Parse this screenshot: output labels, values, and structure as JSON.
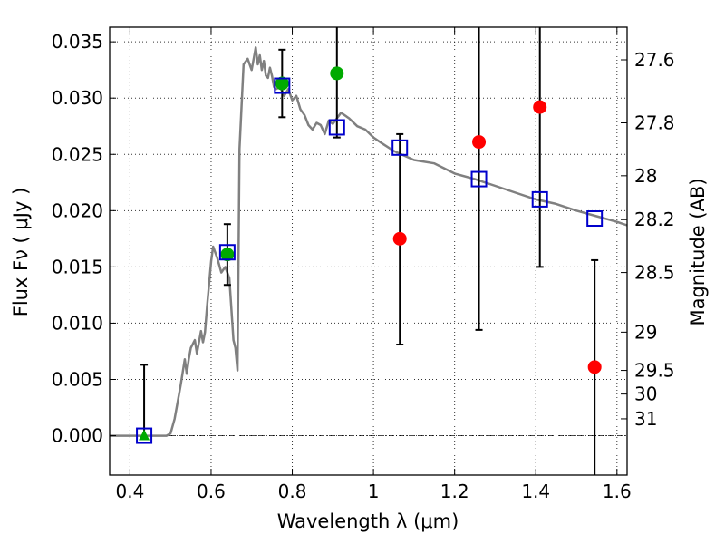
{
  "chart_data": {
    "type": "scatter",
    "xlabel": "Wavelength  λ (μm)",
    "ylabel": "Flux  Fν  ( μJy )",
    "y2label": "Magnitude (AB)",
    "xlim": [
      0.35,
      1.625
    ],
    "ylim": [
      -0.0035,
      0.0363
    ],
    "grid": true,
    "x_ticks": [
      0.4,
      0.6,
      0.8,
      1.0,
      1.2,
      1.4,
      1.6
    ],
    "x_tick_labels": [
      "0.4",
      "0.6",
      "0.8",
      "1",
      "1.2",
      "1.4",
      "1.6"
    ],
    "y_ticks": [
      0.0,
      0.005,
      0.01,
      0.015,
      0.02,
      0.025,
      0.03,
      0.035
    ],
    "y_tick_labels": [
      "0.000",
      "0.005",
      "0.010",
      "0.015",
      "0.020",
      "0.025",
      "0.030",
      "0.035"
    ],
    "y2_ticks": [
      {
        "label": "27.6",
        "flux": 0.0334
      },
      {
        "label": "27.8",
        "flux": 0.0278
      },
      {
        "label": "28",
        "flux": 0.0231
      },
      {
        "label": "28.2",
        "flux": 0.0192
      },
      {
        "label": "28.5",
        "flux": 0.0145
      },
      {
        "label": "29",
        "flux": 0.0092
      },
      {
        "label": "29.5",
        "flux": 0.0058
      },
      {
        "label": "30",
        "flux": 0.0037
      },
      {
        "label": "31",
        "flux": 0.0015
      }
    ],
    "series": [
      {
        "kind": "sed_model_curve",
        "color": "#808080",
        "x": [
          0.35,
          0.48,
          0.49,
          0.5,
          0.51,
          0.525,
          0.535,
          0.54,
          0.545,
          0.55,
          0.56,
          0.565,
          0.575,
          0.58,
          0.585,
          0.59,
          0.6,
          0.605,
          0.615,
          0.625,
          0.635,
          0.645,
          0.655,
          0.66,
          0.665,
          0.67,
          0.68,
          0.69,
          0.7,
          0.71,
          0.715,
          0.72,
          0.725,
          0.73,
          0.735,
          0.74,
          0.745,
          0.75,
          0.755,
          0.76,
          0.77,
          0.78,
          0.79,
          0.8,
          0.81,
          0.82,
          0.83,
          0.84,
          0.85,
          0.86,
          0.87,
          0.88,
          0.89,
          0.9,
          0.92,
          0.94,
          0.96,
          0.98,
          1.0,
          1.02,
          1.05,
          1.1,
          1.15,
          1.2,
          1.25,
          1.3,
          1.35,
          1.4,
          1.45,
          1.5,
          1.55,
          1.6,
          1.625
        ],
        "y": [
          0.0,
          0.0,
          0.0,
          0.0002,
          0.0015,
          0.0045,
          0.0068,
          0.0055,
          0.0068,
          0.0078,
          0.0085,
          0.0073,
          0.0093,
          0.0083,
          0.0092,
          0.0115,
          0.0155,
          0.0168,
          0.0158,
          0.0145,
          0.015,
          0.014,
          0.0085,
          0.0078,
          0.0058,
          0.0255,
          0.033,
          0.0335,
          0.0325,
          0.0345,
          0.033,
          0.0338,
          0.0325,
          0.0333,
          0.032,
          0.0318,
          0.0327,
          0.032,
          0.031,
          0.0308,
          0.031,
          0.0302,
          0.0308,
          0.0298,
          0.0302,
          0.029,
          0.0285,
          0.0276,
          0.0272,
          0.0278,
          0.0276,
          0.0268,
          0.028,
          0.0277,
          0.0287,
          0.0282,
          0.0275,
          0.0272,
          0.0265,
          0.026,
          0.0253,
          0.0245,
          0.0242,
          0.0233,
          0.0228,
          0.0222,
          0.0216,
          0.021,
          0.0206,
          0.02,
          0.0195,
          0.019,
          0.0187
        ]
      },
      {
        "kind": "model_photometry",
        "marker": "open-square",
        "color": "#0000cc",
        "x": [
          0.435,
          0.64,
          0.775,
          0.91,
          1.065,
          1.26,
          1.41,
          1.545
        ],
        "y": [
          0.0,
          0.0163,
          0.0311,
          0.0274,
          0.0256,
          0.0228,
          0.021,
          0.0193
        ]
      },
      {
        "kind": "detections",
        "marker": "filled-circle",
        "color": "#00aa00",
        "x": [
          0.64,
          0.775,
          0.91
        ],
        "y": [
          0.0161,
          0.0313,
          0.0322
        ]
      },
      {
        "kind": "detection_triangle",
        "marker": "triangle",
        "color": "#00aa00",
        "x": [
          0.435
        ],
        "y": [
          0.0
        ]
      },
      {
        "kind": "non_detections",
        "marker": "filled-circle",
        "color": "#ff0000",
        "x": [
          1.065,
          1.26,
          1.41,
          1.545
        ],
        "y": [
          0.0175,
          0.0261,
          0.0292,
          0.0061
        ]
      }
    ],
    "error_bars": [
      {
        "x": 0.435,
        "low": 0.0,
        "high": 0.0063,
        "cap_low": false,
        "cap_high": true
      },
      {
        "x": 0.64,
        "low": 0.0134,
        "high": 0.0188,
        "cap_low": true,
        "cap_high": true
      },
      {
        "x": 0.775,
        "low": 0.0283,
        "high": 0.0343,
        "cap_low": true,
        "cap_high": true
      },
      {
        "x": 0.91,
        "low": 0.0265,
        "high": 0.0363,
        "cap_low": true,
        "cap_high": false
      },
      {
        "x": 1.065,
        "low": 0.0081,
        "high": 0.0268,
        "cap_low": true,
        "cap_high": true
      },
      {
        "x": 1.26,
        "low": 0.0094,
        "high": 0.0363,
        "cap_low": true,
        "cap_high": false
      },
      {
        "x": 1.41,
        "low": 0.015,
        "high": 0.0363,
        "cap_low": true,
        "cap_high": false
      },
      {
        "x": 1.545,
        "low": -0.0035,
        "high": 0.0156,
        "cap_low": false,
        "cap_high": true
      }
    ]
  }
}
